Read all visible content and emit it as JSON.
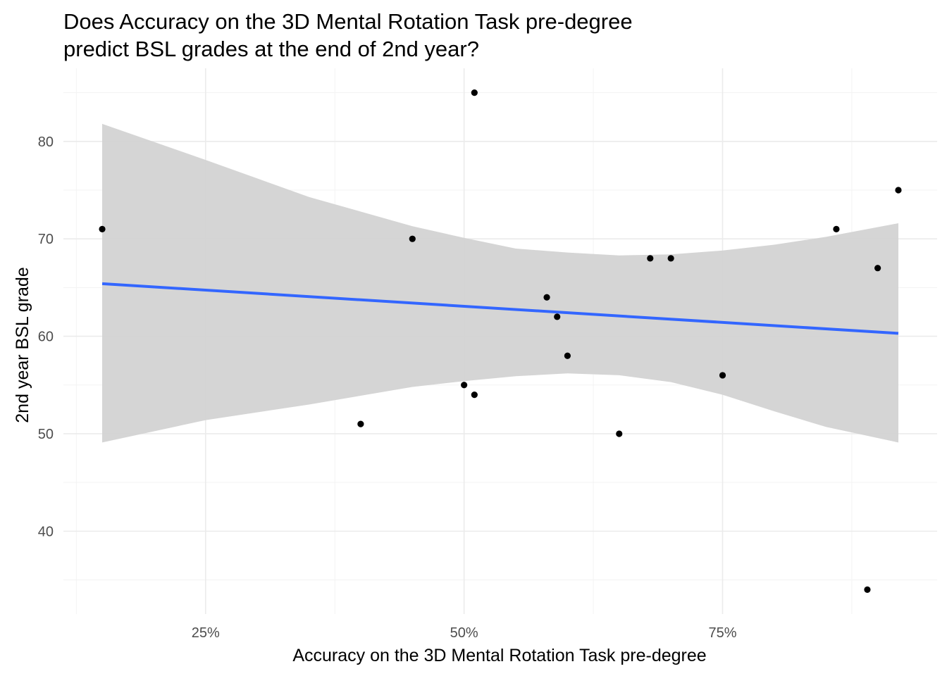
{
  "chart_data": {
    "type": "scatter",
    "title_lines": [
      "Does Accuracy on the 3D Mental Rotation Task pre-degree",
      "predict BSL grades at the end of 2nd year?"
    ],
    "xlabel": "Accuracy on the 3D Mental Rotation Task pre-degree",
    "ylabel": "2nd year BSL grade",
    "xlim": [
      0.1125,
      0.9575
    ],
    "ylim": [
      31.5,
      87.5
    ],
    "x_major_ticks": [
      0.25,
      0.5,
      0.75
    ],
    "x_tick_labels": [
      "25%",
      "50%",
      "75%"
    ],
    "x_minor_ticks": [
      0.125,
      0.375,
      0.625,
      0.875
    ],
    "y_major_ticks": [
      40,
      50,
      60,
      70,
      80
    ],
    "y_tick_labels": [
      "40",
      "50",
      "60",
      "70",
      "80"
    ],
    "y_minor_ticks": [
      35,
      45,
      55,
      65,
      75,
      85
    ],
    "grid": true,
    "points": [
      {
        "x": 0.15,
        "y": 71
      },
      {
        "x": 0.4,
        "y": 51
      },
      {
        "x": 0.45,
        "y": 70
      },
      {
        "x": 0.5,
        "y": 55
      },
      {
        "x": 0.51,
        "y": 54
      },
      {
        "x": 0.51,
        "y": 85
      },
      {
        "x": 0.58,
        "y": 64
      },
      {
        "x": 0.59,
        "y": 62
      },
      {
        "x": 0.6,
        "y": 58
      },
      {
        "x": 0.65,
        "y": 50
      },
      {
        "x": 0.68,
        "y": 68
      },
      {
        "x": 0.7,
        "y": 68
      },
      {
        "x": 0.75,
        "y": 56
      },
      {
        "x": 0.86,
        "y": 71
      },
      {
        "x": 0.89,
        "y": 34
      },
      {
        "x": 0.9,
        "y": 67
      },
      {
        "x": 0.92,
        "y": 75
      }
    ],
    "regression_line": {
      "x_start": 0.15,
      "y_start": 65.4,
      "x_end": 0.92,
      "y_end": 60.3
    },
    "confidence_band": {
      "x": [
        0.15,
        0.25,
        0.35,
        0.45,
        0.5,
        0.55,
        0.6,
        0.65,
        0.7,
        0.75,
        0.8,
        0.85,
        0.92
      ],
      "upper": [
        81.8,
        78.1,
        74.3,
        71.3,
        70.1,
        69.0,
        68.6,
        68.3,
        68.4,
        68.8,
        69.4,
        70.2,
        71.6
      ],
      "lower": [
        49.1,
        51.4,
        53.0,
        54.8,
        55.4,
        55.9,
        56.2,
        56.0,
        55.3,
        54.0,
        52.3,
        50.7,
        49.1
      ]
    },
    "colors": {
      "points": "#000000",
      "line": "#3366ff",
      "band": "#d3d3d3",
      "grid_major": "#ebebeb",
      "grid_minor": "#f3f3f3"
    }
  }
}
